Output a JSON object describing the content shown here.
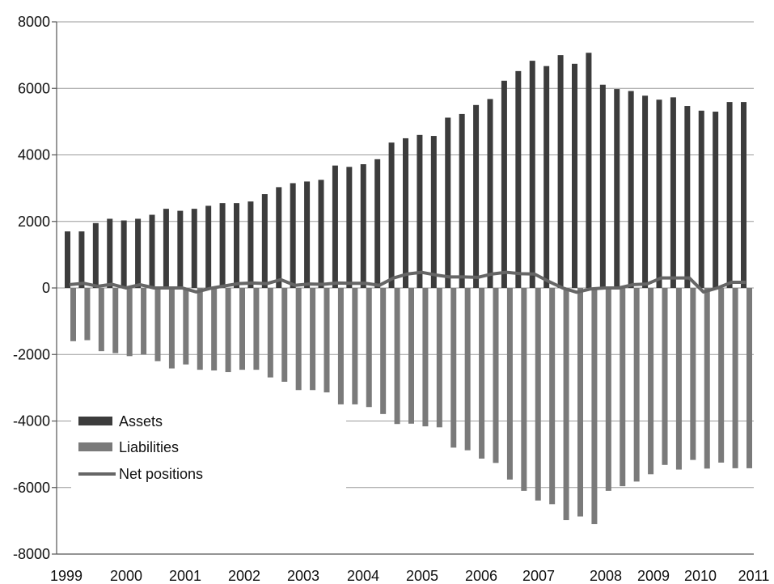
{
  "chart_data": {
    "type": "bar",
    "title": "",
    "xlabel": "",
    "ylabel": "",
    "ylim": [
      -8000,
      8000
    ],
    "yticks": [
      8000,
      6000,
      4000,
      2000,
      0,
      -2000,
      -4000,
      -6000,
      -8000
    ],
    "grid": "horizontal",
    "legend": "bottom-left",
    "xtick_labels": [
      "1999",
      "2000",
      "2001",
      "2002",
      "2003",
      "2004",
      "2005",
      "2006",
      "2007",
      "2008",
      "2009",
      "2010",
      "2011"
    ],
    "x": [
      "1999Q1",
      "1999Q2",
      "1999Q3",
      "1999Q4",
      "2000Q1",
      "2000Q2",
      "2000Q3",
      "2000Q4",
      "2001Q1",
      "2001Q2",
      "2001Q3",
      "2001Q4",
      "2002Q1",
      "2002Q2",
      "2002Q3",
      "2002Q4",
      "2003Q1",
      "2003Q2",
      "2003Q3",
      "2003Q4",
      "2004Q1",
      "2004Q2",
      "2004Q3",
      "2004Q4",
      "2005Q1",
      "2005Q2",
      "2005Q3",
      "2005Q4",
      "2006Q1",
      "2006Q2",
      "2006Q3",
      "2006Q4",
      "2007Q1",
      "2007Q2",
      "2007Q3",
      "2007Q4",
      "2008Q1",
      "2008Q2",
      "2008Q3",
      "2008Q4",
      "2009Q1",
      "2009Q2",
      "2009Q3",
      "2009Q4",
      "2010Q1",
      "2010Q2",
      "2010Q3",
      "2010Q4",
      "2011Q1"
    ],
    "series": [
      {
        "name": "Assets",
        "type": "bar",
        "color": "#3c3c3c",
        "values": [
          1700,
          1700,
          1950,
          2080,
          2030,
          2080,
          2200,
          2380,
          2320,
          2380,
          2470,
          2550,
          2550,
          2600,
          2820,
          3030,
          3150,
          3200,
          3250,
          3680,
          3640,
          3720,
          3870,
          4370,
          4500,
          4600,
          4570,
          5120,
          5230,
          5500,
          5680,
          6230,
          6520,
          6830,
          6670,
          7000,
          6740,
          7070,
          6110,
          5980,
          5920,
          5780,
          5660,
          5730,
          5470,
          5330,
          5300,
          5590,
          5590
        ]
      },
      {
        "name": "Liabilities",
        "type": "bar",
        "color": "#7a7a7a",
        "values": [
          -1600,
          -1570,
          -1900,
          -1960,
          -2050,
          -2000,
          -2200,
          -2420,
          -2300,
          -2460,
          -2480,
          -2530,
          -2460,
          -2460,
          -2690,
          -2820,
          -3070,
          -3070,
          -3140,
          -3500,
          -3500,
          -3580,
          -3790,
          -4090,
          -4080,
          -4160,
          -4190,
          -4800,
          -4880,
          -5130,
          -5260,
          -5760,
          -6100,
          -6390,
          -6500,
          -6980,
          -6870,
          -7100,
          -6100,
          -5960,
          -5820,
          -5600,
          -5320,
          -5460,
          -5170,
          -5430,
          -5250,
          -5420,
          -5420
        ]
      },
      {
        "name": "Net positions",
        "type": "line",
        "color": "#666666",
        "values": [
          100,
          140,
          50,
          110,
          0,
          100,
          0,
          0,
          0,
          -120,
          -10,
          60,
          130,
          150,
          130,
          250,
          80,
          120,
          110,
          150,
          140,
          140,
          80,
          300,
          420,
          470,
          390,
          330,
          330,
          320,
          420,
          470,
          430,
          420,
          200,
          0,
          -130,
          -30,
          0,
          0,
          100,
          120,
          300,
          300,
          300,
          -120,
          0,
          170,
          170
        ]
      }
    ]
  }
}
